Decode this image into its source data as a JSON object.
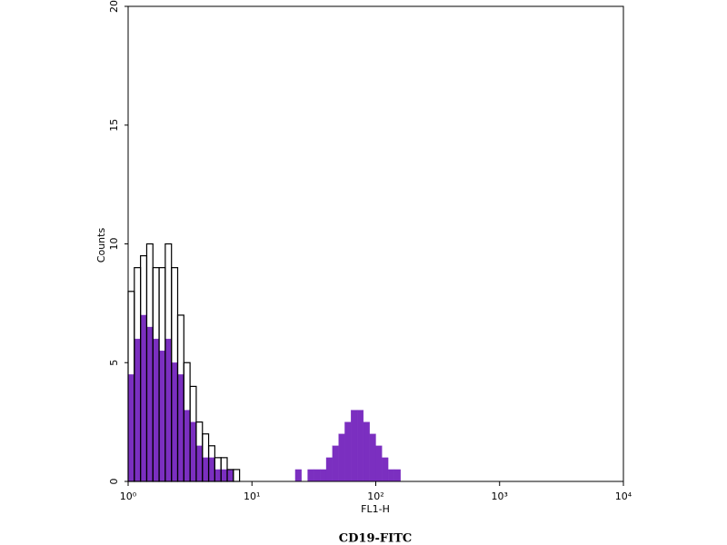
{
  "chart_data": {
    "type": "histogram",
    "caption": "CD19-FITC",
    "x_label": "FL1-H",
    "y_label": "Counts",
    "xscale": "log",
    "xlim": [
      1,
      10000
    ],
    "xticks": [
      {
        "value": 1,
        "label": "10⁰"
      },
      {
        "value": 10,
        "label": "10¹"
      },
      {
        "value": 100,
        "label": "10²"
      },
      {
        "value": 1000,
        "label": "10³"
      },
      {
        "value": 10000,
        "label": "10⁴"
      }
    ],
    "ylim": [
      0,
      20
    ],
    "yticks": [
      0,
      5,
      10,
      15,
      20
    ],
    "bins": [
      1,
      1.122,
      1.259,
      1.413,
      1.585,
      1.778,
      1.995,
      2.239,
      2.512,
      2.818,
      3.162,
      3.548,
      3.981,
      4.467,
      5.012,
      5.623,
      6.31,
      7.079,
      7.943,
      8.913,
      10,
      11.22,
      12.59,
      14.13,
      15.85,
      17.78,
      19.95,
      22.39,
      25.12,
      28.18,
      31.62,
      35.48,
      39.81,
      44.67,
      50.12,
      56.23,
      63.1,
      70.79,
      79.43,
      89.13,
      100,
      112.2,
      125.9,
      141.3,
      158.5
    ],
    "series": [
      {
        "color": "#7b2fc0",
        "filled": true,
        "values": [
          4.5,
          6,
          7,
          6.5,
          6,
          5.5,
          6,
          5,
          4.5,
          3,
          2.5,
          1.5,
          1,
          1,
          0.5,
          0.5,
          0.5,
          0,
          0,
          0,
          0,
          0,
          0,
          0,
          0,
          0,
          0,
          0.5,
          0,
          0.5,
          0.5,
          0.5,
          1,
          1.5,
          2,
          2.5,
          3,
          3,
          2.5,
          2,
          1.5,
          1,
          0.5,
          0.5
        ]
      },
      {
        "color": "#000000",
        "filled": false,
        "values": [
          8,
          9,
          9.5,
          10,
          9,
          9,
          10,
          9,
          7,
          5,
          4,
          2.5,
          2,
          1.5,
          1,
          1,
          0.5,
          0.5,
          0,
          0,
          0,
          0,
          0,
          0,
          0,
          0,
          0,
          0,
          0,
          0,
          0,
          0,
          0,
          0,
          0,
          0,
          0,
          0,
          0,
          0,
          0,
          0,
          0,
          0
        ]
      }
    ]
  }
}
